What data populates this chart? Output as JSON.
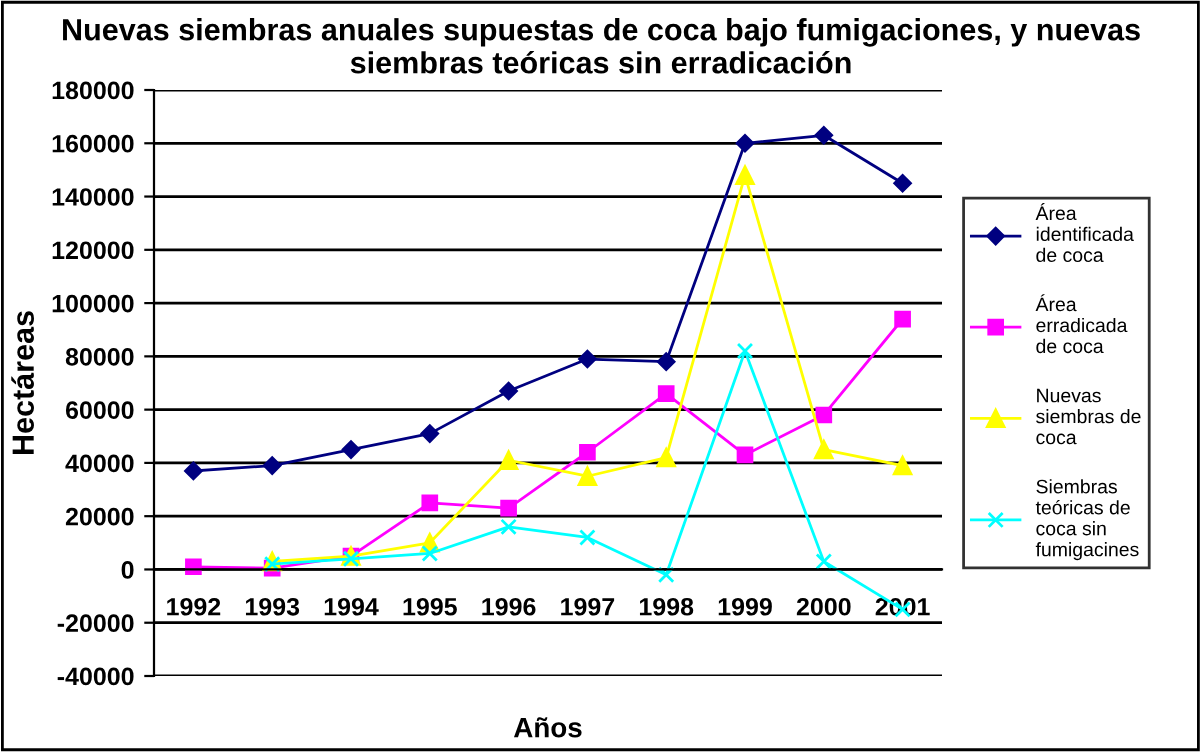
{
  "chart_data": {
    "type": "line",
    "title": "Nuevas siembras anuales supuestas de coca bajo fumigaciones, y nuevas siembras teóricas sin erradicación",
    "xlabel": "Años",
    "ylabel": "Hectáreas",
    "categories": [
      "1992",
      "1993",
      "1994",
      "1995",
      "1996",
      "1997",
      "1998",
      "1999",
      "2000",
      "2001"
    ],
    "series": [
      {
        "name": "Área identificada de coca",
        "color": "#000080",
        "marker": "diamond",
        "values": [
          37000,
          39000,
          45000,
          51000,
          67000,
          79000,
          78000,
          160000,
          163000,
          145000
        ]
      },
      {
        "name": "Área erradicada de coca",
        "color": "#ff00ff",
        "marker": "square",
        "values": [
          1000,
          500,
          5000,
          25000,
          23000,
          44000,
          66000,
          43000,
          58000,
          94000
        ]
      },
      {
        "name": "Nuevas siembras de coca",
        "color": "#ffff00",
        "marker": "triangle",
        "values": [
          null,
          3000,
          5000,
          10000,
          41000,
          35000,
          42000,
          148000,
          45000,
          39000
        ]
      },
      {
        "name": "Siembras teóricas de coca sin fumigacines",
        "color": "#00ffff",
        "marker": "cross",
        "values": [
          null,
          2000,
          4000,
          6000,
          16000,
          12000,
          -2000,
          82000,
          3000,
          -15000
        ]
      }
    ],
    "ylim": [
      -40000,
      180000
    ],
    "yticks": [
      -40000,
      -20000,
      0,
      20000,
      40000,
      60000,
      80000,
      100000,
      120000,
      140000,
      160000,
      180000
    ],
    "grid": "y",
    "legend": "right"
  }
}
